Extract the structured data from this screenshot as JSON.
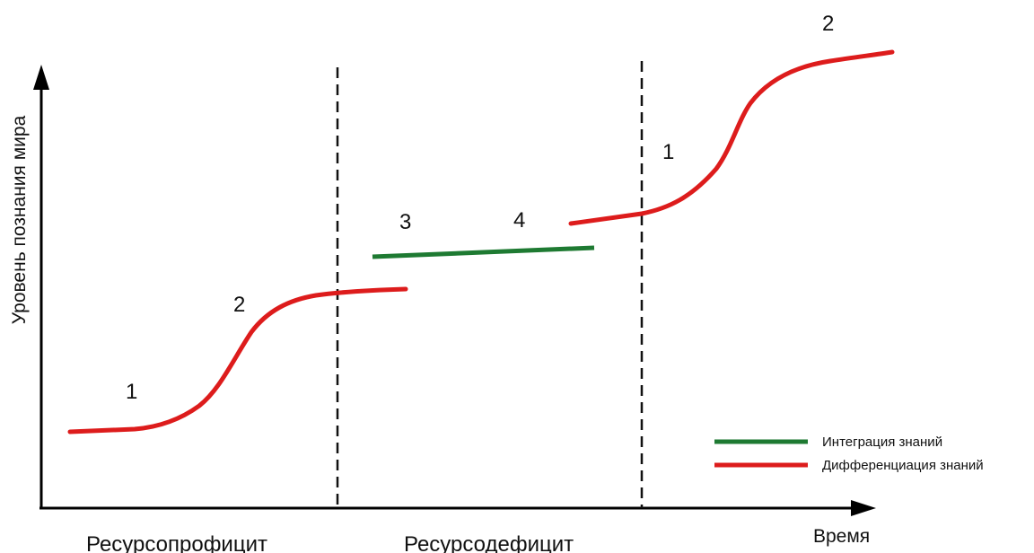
{
  "axes": {
    "y_label": "Уровень познания мира",
    "x_label": "Время"
  },
  "regions": {
    "left": "Ресурсопрофицит",
    "middle": "Ресурсодефицит"
  },
  "phase_labels": {
    "first_1": "1",
    "first_2": "2",
    "middle_3": "3",
    "middle_4": "4",
    "last_1": "1",
    "last_2": "2"
  },
  "legend": {
    "integration": {
      "label": "Интеграция знаний",
      "color": "#1e7a32"
    },
    "differentiation": {
      "label": "Дифференциация знаний",
      "color": "#dd1c1c"
    }
  },
  "colors": {
    "axis": "#000000",
    "divider": "#111111"
  }
}
